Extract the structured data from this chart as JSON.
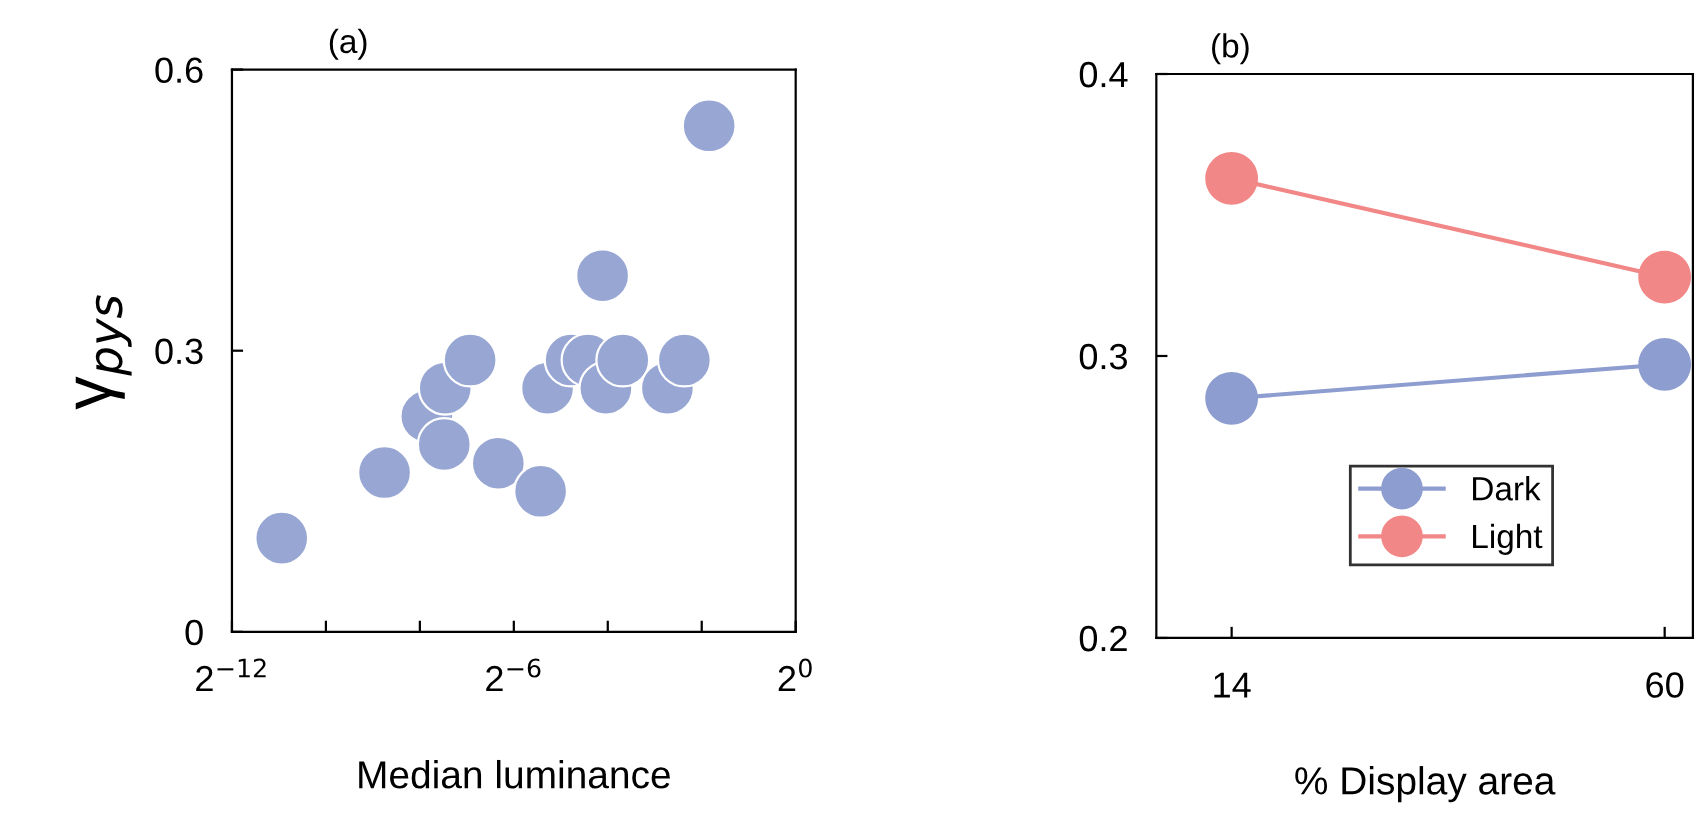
{
  "chart_data": [
    {
      "type": "scatter",
      "title": "(a)",
      "xlabel": "Median luminance",
      "ylabel": "γ$_{pys}$",
      "log": "x",
      "marker": "circle",
      "grid": false,
      "color": "#98a6d3",
      "x": [
        0.000509,
        0.00232,
        0.00433,
        0.00568,
        0.0056,
        0.0082,
        0.01243,
        0.0232,
        0.0257,
        0.0364,
        0.0467,
        0.0579,
        0.0608,
        0.078,
        0.1507,
        0.1935,
        0.279
      ],
      "values": [
        0.1,
        0.17,
        0.23,
        0.26,
        0.2,
        0.29,
        0.18,
        0.15,
        0.26,
        0.29,
        0.29,
        0.38,
        0.26,
        0.29,
        0.26,
        0.29,
        0.54
      ],
      "xlim": [
        0.000244140625,
        1
      ],
      "xticks": [
        {
          "value": 0.000244140625,
          "label": "2$^{−12}$"
        },
        {
          "value": 0.0009765625,
          "label": null
        },
        {
          "value": 0.00390625,
          "label": null
        },
        {
          "value": 0.015625,
          "label": "2$^{−6}$"
        },
        {
          "value": 0.0625,
          "label": null
        },
        {
          "value": 0.25,
          "label": null
        },
        {
          "value": 1,
          "label": "2$^{0}$"
        }
      ],
      "ylim": [
        0,
        0.6
      ],
      "yticks": [
        0,
        0.3,
        0.6
      ]
    },
    {
      "type": "line",
      "title": "(b)",
      "xlabel": "% Display area",
      "x": [
        14,
        60
      ],
      "xlim": [
        6,
        63
      ],
      "xticks": [
        14,
        60
      ],
      "marker": "circle",
      "grid": false,
      "legend": "bottom",
      "series": [
        {
          "name": "Dark",
          "color": "#8e9dcf",
          "values": [
            0.285,
            0.297
          ]
        },
        {
          "name": "Light",
          "color": "#f28787",
          "values": [
            0.363,
            0.328
          ]
        }
      ],
      "ylim": [
        0.2,
        0.4
      ],
      "yticks": [
        0.2,
        0.3,
        0.4
      ]
    }
  ]
}
